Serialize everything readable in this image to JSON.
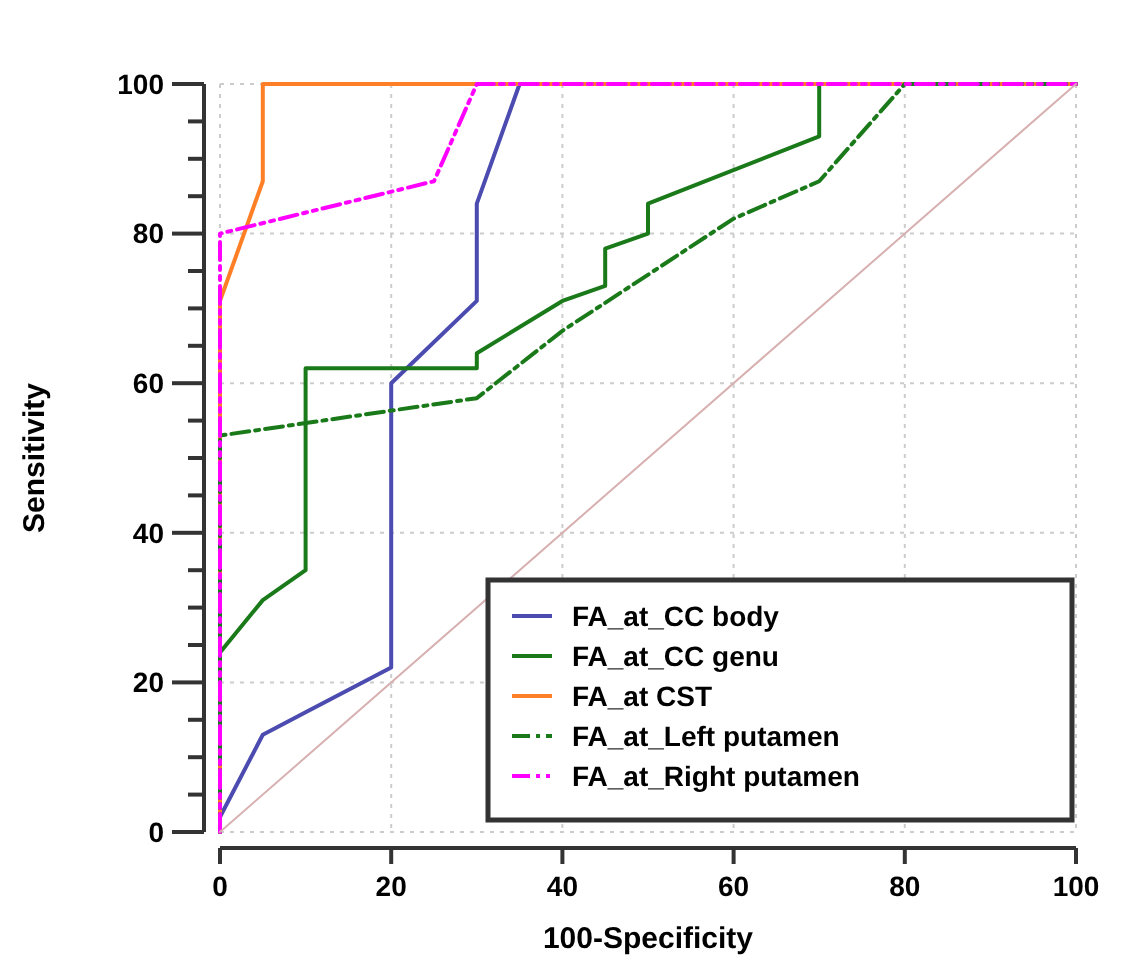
{
  "chart_data": {
    "type": "line",
    "xlabel": "100-Specificity",
    "ylabel": "Sensitivity",
    "xlim": [
      0,
      100
    ],
    "ylim": [
      0,
      100
    ],
    "xticks": [
      0,
      20,
      40,
      60,
      80,
      100
    ],
    "yticks": [
      0,
      {
        "value": 5,
        "label": null
      },
      {
        "value": 10,
        "label": null
      },
      {
        "value": 15,
        "label": null
      },
      20,
      {
        "value": 25,
        "label": null
      },
      {
        "value": 30,
        "label": null
      },
      {
        "value": 35,
        "label": null
      },
      40,
      {
        "value": 45,
        "label": null
      },
      {
        "value": 50,
        "label": null
      },
      {
        "value": 55,
        "label": null
      },
      60,
      {
        "value": 65,
        "label": null
      },
      {
        "value": 70,
        "label": null
      },
      {
        "value": 75,
        "label": null
      },
      80,
      {
        "value": 85,
        "label": null
      },
      {
        "value": 90,
        "label": null
      },
      {
        "value": 95,
        "label": null
      },
      100
    ],
    "grid": true,
    "legend": "bottom right",
    "series": [
      {
        "name": "FA_at_CC body",
        "color": "#4b4bb0",
        "line_style": "solid",
        "x": [
          0,
          0,
          5,
          10,
          20,
          20,
          30,
          30,
          35,
          100
        ],
        "values": [
          0,
          2,
          13,
          16,
          22,
          60,
          71,
          84,
          100,
          100
        ]
      },
      {
        "name": "FA_at_CC genu",
        "color": "#1a7a1a",
        "line_style": "solid",
        "x": [
          0,
          0,
          5,
          10,
          10,
          30,
          30,
          40,
          45,
          45,
          50,
          50,
          70,
          70,
          100
        ],
        "values": [
          0,
          24,
          31,
          35,
          62,
          62,
          64,
          71,
          73,
          78,
          80,
          84,
          93,
          100,
          100
        ]
      },
      {
        "name": "FA_at CST",
        "color": "#ff7f27",
        "line_style": "solid",
        "x": [
          0,
          0,
          5,
          5,
          100
        ],
        "values": [
          0,
          71,
          87,
          100,
          100
        ]
      },
      {
        "name": "FA_at_Left putamen",
        "color": "#1a7a1a",
        "line_style": "dashed",
        "x": [
          0,
          0,
          30,
          40,
          60,
          70,
          80,
          100
        ],
        "values": [
          0,
          53,
          58,
          67,
          82,
          87,
          100,
          100
        ]
      },
      {
        "name": "FA_at_Right putamen",
        "color": "#ff00ff",
        "line_style": "dotted",
        "x": [
          0,
          0,
          25,
          30,
          100
        ],
        "values": [
          0,
          80,
          87,
          100,
          100
        ]
      },
      {
        "color": "#d8b0b0",
        "line_style": "solid",
        "x": [
          0,
          100
        ],
        "values": [
          0,
          100
        ]
      }
    ]
  }
}
